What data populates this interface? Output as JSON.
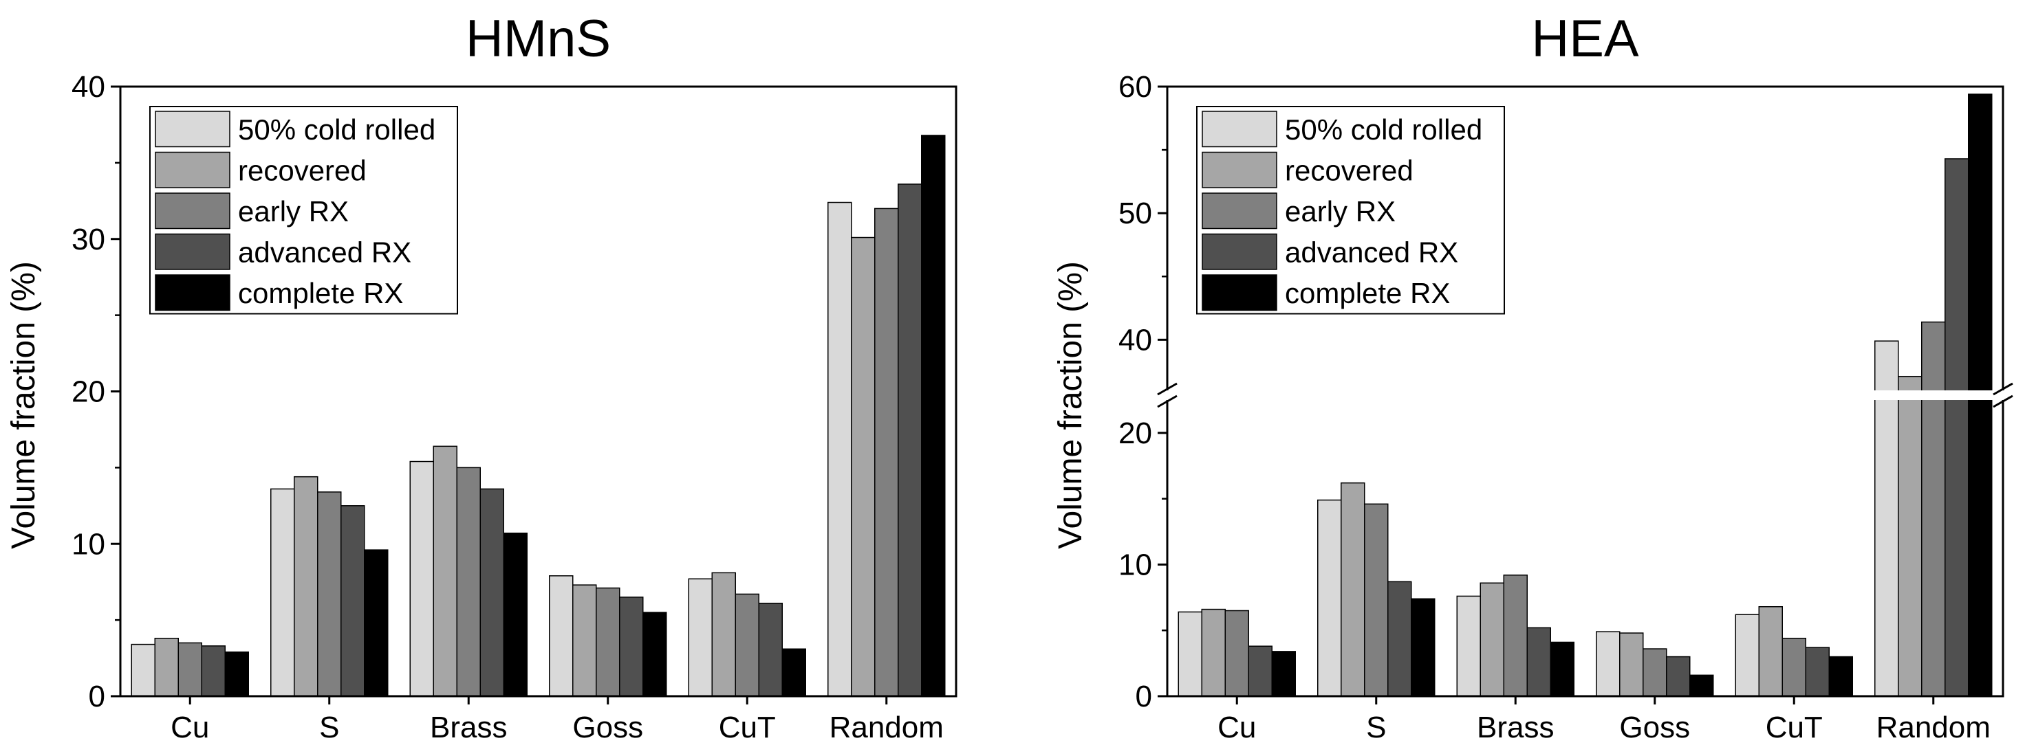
{
  "chart_data": [
    {
      "type": "bar",
      "title": "HMnS",
      "xlabel": "",
      "ylabel": "Volume fraction (%)",
      "categories": [
        "Cu",
        "S",
        "Brass",
        "Goss",
        "CuT",
        "Random"
      ],
      "ylim": [
        0,
        40
      ],
      "yticks": [
        0,
        10,
        20,
        30,
        40
      ],
      "legend_position": "top-left",
      "series": [
        {
          "name": "50% cold rolled",
          "color": "#d9d9d9",
          "values": [
            3.4,
            13.6,
            15.4,
            7.9,
            7.7,
            32.4
          ]
        },
        {
          "name": "recovered",
          "color": "#a6a6a6",
          "values": [
            3.8,
            14.4,
            16.4,
            7.3,
            8.1,
            30.1
          ]
        },
        {
          "name": "early RX",
          "color": "#808080",
          "values": [
            3.5,
            13.4,
            15.0,
            7.1,
            6.7,
            32.0
          ]
        },
        {
          "name": "advanced RX",
          "color": "#505050",
          "values": [
            3.3,
            12.5,
            13.6,
            6.5,
            6.1,
            33.6
          ]
        },
        {
          "name": "complete RX",
          "color": "#000000",
          "values": [
            2.9,
            9.6,
            10.7,
            5.5,
            3.1,
            36.8
          ]
        }
      ]
    },
    {
      "type": "bar",
      "title": "HEA",
      "xlabel": "",
      "ylabel": "Volume fraction (%)",
      "categories": [
        "Cu",
        "S",
        "Brass",
        "Goss",
        "CuT",
        "Random"
      ],
      "axis_break": {
        "lower_range": [
          0,
          22.5
        ],
        "upper_range": [
          36,
          60
        ]
      },
      "lower_yticks": [
        0,
        10,
        20
      ],
      "upper_yticks": [
        40,
        50,
        60
      ],
      "legend_position": "top-left",
      "series": [
        {
          "name": "50% cold rolled",
          "color": "#d9d9d9",
          "values": [
            6.4,
            14.9,
            7.6,
            4.9,
            6.2,
            39.9
          ]
        },
        {
          "name": "recovered",
          "color": "#a6a6a6",
          "values": [
            6.6,
            16.2,
            8.6,
            4.8,
            6.8,
            37.1
          ]
        },
        {
          "name": "early RX",
          "color": "#808080",
          "values": [
            6.5,
            14.6,
            9.2,
            3.6,
            4.4,
            41.4
          ]
        },
        {
          "name": "advanced RX",
          "color": "#505050",
          "values": [
            3.8,
            8.7,
            5.2,
            3.0,
            3.7,
            54.3
          ]
        },
        {
          "name": "complete RX",
          "color": "#000000",
          "values": [
            3.4,
            7.4,
            4.1,
            1.6,
            3.0,
            59.4
          ]
        }
      ]
    }
  ]
}
